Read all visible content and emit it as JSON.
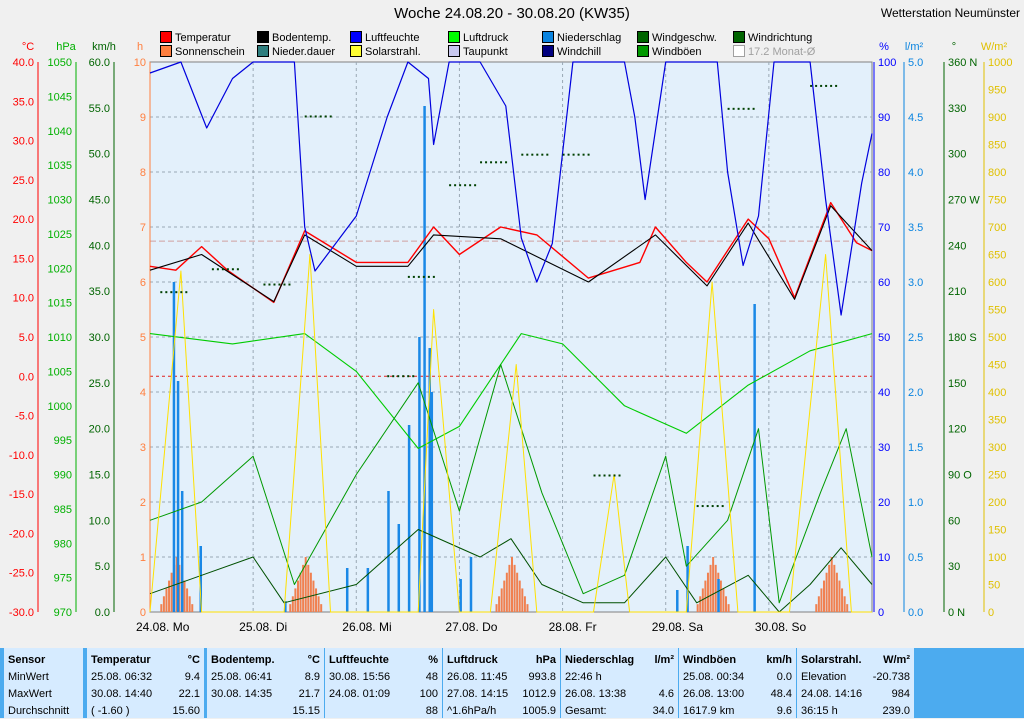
{
  "header": {
    "title": "Woche 24.08.20 - 30.08.20 (KW35)",
    "station": "Wetterstation Neumünster"
  },
  "legend": [
    {
      "label": "Temperatur",
      "color": "#ff0000",
      "enabled": true
    },
    {
      "label": "Bodentemp.",
      "color": "#000000",
      "enabled": true
    },
    {
      "label": "Luftfeuchte",
      "color": "#0000ff",
      "enabled": true
    },
    {
      "label": "Luftdruck",
      "color": "#00ff00",
      "enabled": true
    },
    {
      "label": "Niederschlag",
      "color": "#0a84e0",
      "enabled": true
    },
    {
      "label": "Windgeschw.",
      "color": "#006400",
      "enabled": true
    },
    {
      "label": "Windrichtung",
      "color": "#006400",
      "enabled": true
    },
    {
      "label": "Sonnenschein",
      "color": "#ff7f3f",
      "enabled": true
    },
    {
      "label": "Nieder.dauer",
      "color": "#2f7f7f",
      "enabled": true
    },
    {
      "label": "Solarstrahl.",
      "color": "#ffff33",
      "enabled": true
    },
    {
      "label": "Taupunkt",
      "color": "#c8c8f0",
      "enabled": true
    },
    {
      "label": "Windchill",
      "color": "#000080",
      "enabled": true
    },
    {
      "label": "Windböen",
      "color": "#009900",
      "enabled": true
    },
    {
      "label": "17.2 Monat-Ø",
      "color": "#ffffff",
      "enabled": false
    }
  ],
  "axes": {
    "temp": {
      "unit": "°C",
      "color": "#ff0000",
      "ticks": [
        "40.0",
        "35.0",
        "30.0",
        "25.0",
        "20.0",
        "15.0",
        "10.0",
        "5.0",
        "0.0",
        "-5.0",
        "-10.0",
        "-15.0",
        "-20.0",
        "-25.0",
        "-30.0"
      ]
    },
    "pressure": {
      "unit": "hPa",
      "color": "#00b000",
      "ticks": [
        "1050",
        "1045",
        "1040",
        "1035",
        "1030",
        "1025",
        "1020",
        "1015",
        "1010",
        "1005",
        "1000",
        "995",
        "990",
        "985",
        "980",
        "975",
        "970"
      ]
    },
    "wind": {
      "unit": "km/h",
      "color": "#006400",
      "ticks": [
        "60.0",
        "55.0",
        "50.0",
        "45.0",
        "40.0",
        "35.0",
        "30.0",
        "25.0",
        "20.0",
        "15.0",
        "10.0",
        "5.0",
        "0.0"
      ]
    },
    "hours": {
      "unit": "h",
      "color": "#ff7f3f",
      "ticks": [
        "10",
        "9",
        "8",
        "7",
        "6",
        "5",
        "4",
        "3",
        "2",
        "1",
        "0"
      ]
    },
    "humidity": {
      "unit": "%",
      "color": "#0000ff",
      "ticks": [
        "100",
        "90",
        "80",
        "70",
        "60",
        "50",
        "40",
        "30",
        "20",
        "10",
        "0"
      ]
    },
    "rain": {
      "unit": "l/m²",
      "color": "#0a84e0",
      "ticks": [
        "5.0",
        "4.5",
        "4.0",
        "3.5",
        "3.0",
        "2.5",
        "2.0",
        "1.5",
        "1.0",
        "0.5",
        "0.0"
      ]
    },
    "direction": {
      "unit": "°",
      "color": "#006400",
      "ticks": [
        "360 N",
        "330",
        "300",
        "270 W",
        "240",
        "210",
        "180 S",
        "150",
        "120",
        "90 O",
        "60",
        "30",
        "0 N"
      ]
    },
    "solar": {
      "unit": "W/m²",
      "color": "#e0c000",
      "ticks": [
        "1000",
        "950",
        "900",
        "850",
        "800",
        "750",
        "700",
        "650",
        "600",
        "550",
        "500",
        "450",
        "400",
        "350",
        "300",
        "250",
        "200",
        "150",
        "100",
        "50",
        "0"
      ]
    },
    "days": [
      "24.08.  Mo",
      "25.08.  Di",
      "26.08.  Mi",
      "27.08.  Do",
      "28.08.  Fr",
      "29.08.  Sa",
      "30.08.  So"
    ]
  },
  "chart_data": {
    "type": "line",
    "title": "Woche 24.08.20 - 30.08.20 (KW35)",
    "x_unit": "days since 24.08.20 00:00",
    "series": [
      {
        "name": "Temperatur",
        "unit": "°C",
        "points": [
          [
            0,
            14.0
          ],
          [
            0.25,
            13.5
          ],
          [
            0.5,
            16.5
          ],
          [
            0.75,
            13.5
          ],
          [
            1.2,
            9.4
          ],
          [
            1.5,
            18.5
          ],
          [
            1.75,
            16.5
          ],
          [
            2.0,
            14.5
          ],
          [
            2.5,
            14.5
          ],
          [
            2.75,
            19.0
          ],
          [
            3.0,
            15.5
          ],
          [
            3.4,
            19.0
          ],
          [
            3.75,
            18.0
          ],
          [
            4.25,
            12.5
          ],
          [
            4.75,
            14.5
          ],
          [
            4.9,
            19.0
          ],
          [
            5.2,
            14.5
          ],
          [
            5.4,
            12.0
          ],
          [
            5.8,
            20.0
          ],
          [
            6.0,
            17.5
          ],
          [
            6.25,
            10.0
          ],
          [
            6.6,
            22.1
          ],
          [
            6.85,
            17.0
          ],
          [
            7.0,
            16.0
          ]
        ]
      },
      {
        "name": "Bodentemp.",
        "unit": "°C",
        "points": [
          [
            0,
            13.5
          ],
          [
            0.5,
            15.5
          ],
          [
            1.2,
            9.5
          ],
          [
            1.5,
            18.0
          ],
          [
            2.0,
            14.0
          ],
          [
            2.5,
            14.0
          ],
          [
            2.75,
            18.0
          ],
          [
            3.4,
            17.5
          ],
          [
            4.25,
            12.0
          ],
          [
            4.9,
            18.0
          ],
          [
            5.4,
            11.5
          ],
          [
            5.8,
            19.5
          ],
          [
            6.25,
            9.8
          ],
          [
            6.6,
            21.7
          ],
          [
            7.0,
            16.0
          ]
        ]
      },
      {
        "name": "Luftfeuchte",
        "unit": "%",
        "points": [
          [
            0,
            98
          ],
          [
            0.3,
            100
          ],
          [
            0.55,
            88
          ],
          [
            0.8,
            97
          ],
          [
            1.0,
            100
          ],
          [
            1.4,
            100
          ],
          [
            1.5,
            70
          ],
          [
            1.6,
            62
          ],
          [
            2.0,
            72
          ],
          [
            2.3,
            90
          ],
          [
            2.5,
            100
          ],
          [
            2.7,
            97
          ],
          [
            2.75,
            85
          ],
          [
            2.9,
            100
          ],
          [
            3.2,
            100
          ],
          [
            3.45,
            92
          ],
          [
            3.6,
            68
          ],
          [
            3.75,
            60
          ],
          [
            3.9,
            67
          ],
          [
            4.1,
            100
          ],
          [
            4.6,
            100
          ],
          [
            4.7,
            90
          ],
          [
            4.8,
            75
          ],
          [
            5.0,
            100
          ],
          [
            5.5,
            100
          ],
          [
            5.6,
            80
          ],
          [
            5.75,
            63
          ],
          [
            5.9,
            72
          ],
          [
            6.05,
            100
          ],
          [
            6.4,
            100
          ],
          [
            6.55,
            75
          ],
          [
            6.7,
            54
          ],
          [
            6.9,
            78
          ],
          [
            7.0,
            87
          ]
        ]
      },
      {
        "name": "Luftdruck",
        "unit": "hPa",
        "points": [
          [
            0,
            1010.5
          ],
          [
            0.8,
            1009.0
          ],
          [
            1.5,
            1010.5
          ],
          [
            2.0,
            1005.0
          ],
          [
            2.6,
            993.8
          ],
          [
            3.0,
            997.0
          ],
          [
            3.6,
            1010.5
          ],
          [
            4.0,
            1009.0
          ],
          [
            4.6,
            1000.0
          ],
          [
            5.2,
            996.0
          ],
          [
            5.8,
            1003.0
          ],
          [
            6.4,
            1008.0
          ],
          [
            7.0,
            1010.5
          ]
        ]
      },
      {
        "name": "Windgeschw.",
        "unit": "km/h",
        "points": [
          [
            0,
            2
          ],
          [
            0.5,
            4
          ],
          [
            1.0,
            6
          ],
          [
            1.3,
            1
          ],
          [
            2.0,
            3
          ],
          [
            2.6,
            9
          ],
          [
            3.2,
            6
          ],
          [
            3.5,
            8
          ],
          [
            3.8,
            3
          ],
          [
            4.2,
            1
          ],
          [
            4.6,
            1
          ],
          [
            5.0,
            6
          ],
          [
            5.3,
            1
          ],
          [
            5.8,
            4
          ],
          [
            6.1,
            0
          ],
          [
            6.4,
            3
          ],
          [
            6.7,
            7
          ],
          [
            7.0,
            3
          ]
        ]
      },
      {
        "name": "Windböen",
        "unit": "km/h",
        "points": [
          [
            0,
            10
          ],
          [
            0.5,
            12
          ],
          [
            1.0,
            17
          ],
          [
            1.4,
            3
          ],
          [
            2.0,
            15
          ],
          [
            2.6,
            25
          ],
          [
            3.0,
            11
          ],
          [
            3.4,
            27
          ],
          [
            3.8,
            13
          ],
          [
            4.2,
            2
          ],
          [
            4.6,
            4
          ],
          [
            5.0,
            17
          ],
          [
            5.2,
            5
          ],
          [
            5.6,
            10
          ],
          [
            5.9,
            20
          ],
          [
            6.1,
            1
          ],
          [
            6.5,
            13
          ],
          [
            6.75,
            20
          ],
          [
            7.0,
            6
          ]
        ]
      },
      {
        "name": "Solarstrahl.",
        "unit": "W/m²",
        "points": [
          [
            0,
            0
          ],
          [
            0.3,
            620
          ],
          [
            0.5,
            0
          ],
          [
            1.3,
            0
          ],
          [
            1.55,
            650
          ],
          [
            1.75,
            0
          ],
          [
            2.6,
            0
          ],
          [
            2.75,
            550
          ],
          [
            3.0,
            0
          ],
          [
            3.3,
            0
          ],
          [
            3.55,
            450
          ],
          [
            3.75,
            0
          ],
          [
            4.3,
            0
          ],
          [
            4.5,
            250
          ],
          [
            4.65,
            0
          ],
          [
            5.2,
            0
          ],
          [
            5.45,
            600
          ],
          [
            5.7,
            0
          ],
          [
            6.2,
            0
          ],
          [
            6.55,
            650
          ],
          [
            6.8,
            0
          ],
          [
            7.0,
            0
          ]
        ]
      }
    ]
  },
  "stats": {
    "columns": [
      {
        "head": [
          "Sensor",
          ""
        ],
        "rows": [
          [
            "MinWert",
            ""
          ],
          [
            "MaxWert",
            ""
          ],
          [
            "Durchschnitt",
            ""
          ]
        ]
      },
      {
        "head": [
          "Temperatur",
          "°C"
        ],
        "rows": [
          [
            "25.08.  06:32",
            "9.4"
          ],
          [
            "30.08.  14:40",
            "22.1"
          ],
          [
            "( -1.60 )",
            "15.60"
          ]
        ]
      },
      {
        "head": [
          "Bodentemp.",
          "°C"
        ],
        "rows": [
          [
            "25.08.  06:41",
            "8.9"
          ],
          [
            "30.08.  14:35",
            "21.7"
          ],
          [
            "",
            "15.15"
          ]
        ]
      },
      {
        "head": [
          "Luftfeuchte",
          "%"
        ],
        "rows": [
          [
            "30.08.  15:56",
            "48"
          ],
          [
            "24.08.  01:09",
            "100"
          ],
          [
            "",
            "88"
          ]
        ]
      },
      {
        "head": [
          "Luftdruck",
          "hPa"
        ],
        "rows": [
          [
            "26.08.  11:45",
            "993.8"
          ],
          [
            "27.08.  14:15",
            "1012.9"
          ],
          [
            "^1.6hPa/h",
            "1005.9"
          ]
        ]
      },
      {
        "head": [
          "Niederschlag",
          "l/m²"
        ],
        "rows": [
          [
            "22:46 h",
            ""
          ],
          [
            "26.08.  13:38",
            "4.6"
          ],
          [
            "Gesamt:",
            "34.0"
          ]
        ]
      },
      {
        "head": [
          "Windböen",
          "km/h"
        ],
        "rows": [
          [
            "25.08.  00:34",
            "0.0"
          ],
          [
            "26.08.  13:00",
            "48.4"
          ],
          [
            "1617.9 km",
            "9.6"
          ]
        ]
      },
      {
        "head": [
          "Solarstrahl.",
          "W/m²"
        ],
        "rows": [
          [
            "Elevation",
            "-20.738"
          ],
          [
            "24.08.  14:16",
            "984"
          ],
          [
            "36:15 h",
            "239.0"
          ]
        ]
      }
    ]
  }
}
